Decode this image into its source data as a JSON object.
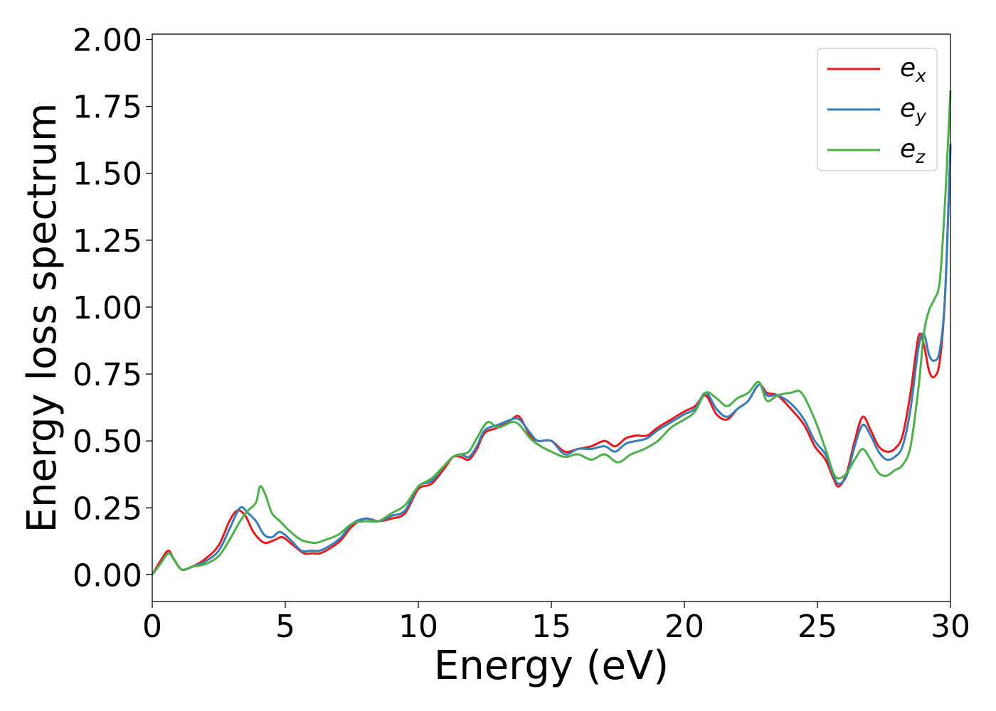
{
  "chart_data": {
    "type": "line",
    "title": "",
    "xlabel": "Energy (eV)",
    "ylabel": "Energy loss spectrum",
    "xlim": [
      0,
      30
    ],
    "ylim": [
      -0.1,
      2.02
    ],
    "xticks": [
      "0",
      "5",
      "10",
      "15",
      "20",
      "25",
      "30"
    ],
    "yticks": [
      "0.00",
      "0.25",
      "0.50",
      "0.75",
      "1.00",
      "1.25",
      "1.50",
      "1.75",
      "2.00"
    ],
    "grid": false,
    "legend_position": "top-right",
    "series": [
      {
        "name": "e_x",
        "legend_base": "e",
        "legend_sub": "x",
        "color": "#e41a1c",
        "x": [
          0,
          0.3,
          0.6,
          0.8,
          1.1,
          1.5,
          2.0,
          2.5,
          2.9,
          3.2,
          3.5,
          3.8,
          4.2,
          4.6,
          4.9,
          5.3,
          5.7,
          6.0,
          6.3,
          6.7,
          7.1,
          7.5,
          8.0,
          8.5,
          9.0,
          9.5,
          10.0,
          10.5,
          11.0,
          11.3,
          11.6,
          11.9,
          12.2,
          12.5,
          13.0,
          13.5,
          13.8,
          14.2,
          14.5,
          15.0,
          15.5,
          16.0,
          16.5,
          17.0,
          17.4,
          17.8,
          18.2,
          18.6,
          19.0,
          19.5,
          20.0,
          20.4,
          20.8,
          21.2,
          21.6,
          22.0,
          22.4,
          22.8,
          23.1,
          23.5,
          24.0,
          24.5,
          24.9,
          25.3,
          25.6,
          25.8,
          26.1,
          26.4,
          26.7,
          27.0,
          27.3,
          27.6,
          27.9,
          28.2,
          28.5,
          28.8,
          29.0,
          29.2,
          29.4,
          29.6,
          29.8,
          30.0
        ],
        "y": [
          0.0,
          0.05,
          0.09,
          0.06,
          0.02,
          0.03,
          0.06,
          0.11,
          0.2,
          0.24,
          0.22,
          0.16,
          0.12,
          0.13,
          0.14,
          0.11,
          0.08,
          0.08,
          0.08,
          0.1,
          0.13,
          0.18,
          0.21,
          0.2,
          0.21,
          0.23,
          0.32,
          0.34,
          0.4,
          0.44,
          0.44,
          0.43,
          0.47,
          0.53,
          0.55,
          0.58,
          0.59,
          0.52,
          0.5,
          0.5,
          0.46,
          0.47,
          0.48,
          0.5,
          0.48,
          0.51,
          0.52,
          0.52,
          0.55,
          0.58,
          0.61,
          0.63,
          0.67,
          0.6,
          0.58,
          0.62,
          0.65,
          0.71,
          0.68,
          0.67,
          0.62,
          0.56,
          0.48,
          0.43,
          0.36,
          0.33,
          0.38,
          0.5,
          0.59,
          0.54,
          0.48,
          0.46,
          0.47,
          0.52,
          0.68,
          0.89,
          0.86,
          0.76,
          0.74,
          0.8,
          1.05,
          1.6
        ]
      },
      {
        "name": "e_y",
        "legend_base": "e",
        "legend_sub": "y",
        "color": "#377eb8",
        "x": [
          0,
          0.3,
          0.6,
          0.8,
          1.1,
          1.5,
          2.0,
          2.5,
          2.9,
          3.3,
          3.6,
          3.9,
          4.2,
          4.5,
          4.8,
          5.2,
          5.6,
          6.0,
          6.3,
          6.7,
          7.1,
          7.5,
          8.0,
          8.5,
          9.0,
          9.5,
          10.0,
          10.5,
          11.0,
          11.3,
          11.6,
          11.9,
          12.2,
          12.5,
          13.0,
          13.5,
          13.8,
          14.2,
          14.5,
          15.0,
          15.5,
          16.0,
          16.5,
          17.0,
          17.4,
          17.8,
          18.2,
          18.6,
          19.0,
          19.5,
          20.0,
          20.4,
          20.8,
          21.2,
          21.6,
          22.0,
          22.4,
          22.8,
          23.1,
          23.5,
          24.0,
          24.5,
          24.9,
          25.3,
          25.6,
          25.8,
          26.1,
          26.4,
          26.7,
          27.0,
          27.3,
          27.6,
          27.9,
          28.2,
          28.5,
          28.8,
          29.0,
          29.2,
          29.4,
          29.6,
          29.8,
          30.0
        ],
        "y": [
          0.0,
          0.04,
          0.08,
          0.06,
          0.02,
          0.03,
          0.05,
          0.09,
          0.17,
          0.25,
          0.23,
          0.2,
          0.15,
          0.14,
          0.16,
          0.13,
          0.09,
          0.09,
          0.09,
          0.11,
          0.14,
          0.19,
          0.21,
          0.2,
          0.22,
          0.24,
          0.33,
          0.35,
          0.41,
          0.44,
          0.45,
          0.44,
          0.48,
          0.54,
          0.56,
          0.58,
          0.58,
          0.53,
          0.5,
          0.5,
          0.45,
          0.47,
          0.47,
          0.48,
          0.46,
          0.49,
          0.5,
          0.51,
          0.54,
          0.57,
          0.6,
          0.62,
          0.68,
          0.62,
          0.59,
          0.62,
          0.65,
          0.71,
          0.67,
          0.67,
          0.64,
          0.58,
          0.5,
          0.45,
          0.37,
          0.34,
          0.37,
          0.48,
          0.56,
          0.52,
          0.46,
          0.43,
          0.44,
          0.48,
          0.62,
          0.85,
          0.9,
          0.82,
          0.8,
          0.84,
          1.05,
          1.61
        ]
      },
      {
        "name": "e_z",
        "legend_base": "e",
        "legend_sub": "z",
        "color": "#4daf4a",
        "x": [
          0,
          0.3,
          0.6,
          0.8,
          1.1,
          1.5,
          2.0,
          2.5,
          2.9,
          3.3,
          3.6,
          3.9,
          4.05,
          4.25,
          4.5,
          4.8,
          5.2,
          5.6,
          6.0,
          6.2,
          6.5,
          7.0,
          7.5,
          8.0,
          8.5,
          9.0,
          9.5,
          10.0,
          10.5,
          11.0,
          11.3,
          11.6,
          11.9,
          12.2,
          12.6,
          13.0,
          13.5,
          13.8,
          14.2,
          14.6,
          15.0,
          15.5,
          16.0,
          16.5,
          17.0,
          17.5,
          18.0,
          18.5,
          19.0,
          19.5,
          20.0,
          20.4,
          20.8,
          21.2,
          21.6,
          22.0,
          22.4,
          22.8,
          23.1,
          23.5,
          24.0,
          24.4,
          24.9,
          25.3,
          25.6,
          25.8,
          26.1,
          26.4,
          26.7,
          27.0,
          27.3,
          27.6,
          27.9,
          28.2,
          28.5,
          28.8,
          29.0,
          29.2,
          29.4,
          29.6,
          29.8,
          30.0
        ],
        "y": [
          0.0,
          0.04,
          0.08,
          0.06,
          0.02,
          0.03,
          0.04,
          0.07,
          0.13,
          0.2,
          0.24,
          0.27,
          0.33,
          0.3,
          0.23,
          0.2,
          0.16,
          0.13,
          0.12,
          0.12,
          0.13,
          0.15,
          0.19,
          0.2,
          0.2,
          0.23,
          0.26,
          0.33,
          0.36,
          0.41,
          0.44,
          0.45,
          0.46,
          0.51,
          0.57,
          0.55,
          0.57,
          0.56,
          0.51,
          0.48,
          0.46,
          0.44,
          0.45,
          0.43,
          0.45,
          0.42,
          0.45,
          0.47,
          0.5,
          0.55,
          0.58,
          0.61,
          0.68,
          0.66,
          0.63,
          0.66,
          0.68,
          0.72,
          0.65,
          0.67,
          0.68,
          0.68,
          0.58,
          0.47,
          0.38,
          0.36,
          0.38,
          0.43,
          0.47,
          0.43,
          0.38,
          0.37,
          0.39,
          0.41,
          0.48,
          0.7,
          0.9,
          0.99,
          1.03,
          1.1,
          1.4,
          1.81
        ]
      }
    ]
  }
}
